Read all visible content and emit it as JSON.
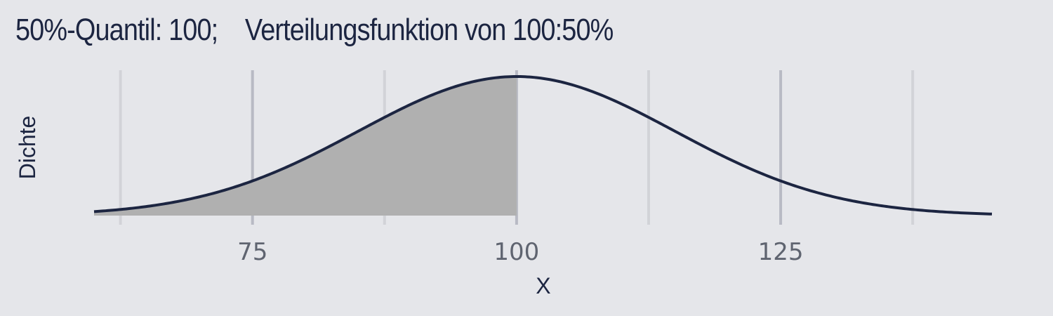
{
  "chart_data": {
    "type": "area",
    "title": "50%-Quantil: 100;    Verteilungsfunktion von 100:50%",
    "xlabel": "X",
    "ylabel": "Dichte",
    "distribution": {
      "family": "normal",
      "mean": 100,
      "sd": 15
    },
    "x_range": [
      60,
      145
    ],
    "x_ticks": [
      75,
      100,
      125
    ],
    "minor_gridlines_x": [
      62.5,
      87.5,
      112.5,
      137.5
    ],
    "shaded_region": {
      "from": 60,
      "to": 100,
      "probability": 0.5
    },
    "grid": true,
    "legend": "none",
    "colors": {
      "curve": "#1c2541",
      "fill": "#b0b0b0",
      "background": "#e5e6ea",
      "major_grid": "#b8bac4",
      "minor_grid": "#d2d3d8"
    }
  }
}
